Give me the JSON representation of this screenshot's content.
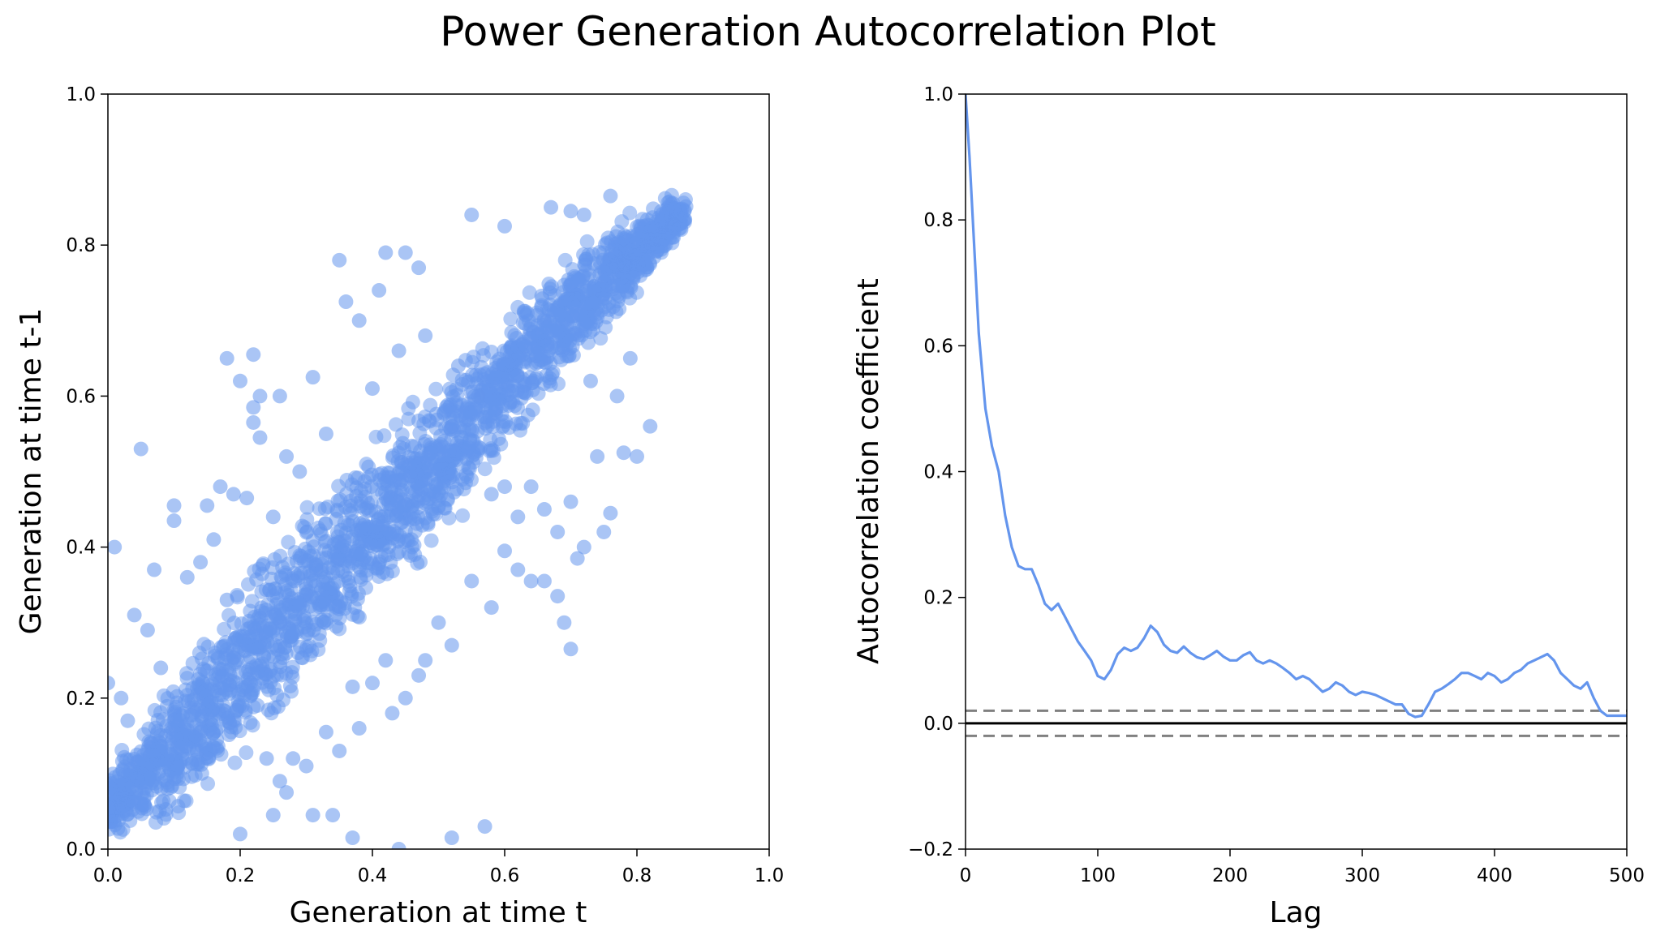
{
  "title": "Power Generation Autocorrelation Plot",
  "chart_data": [
    {
      "type": "scatter",
      "xlabel": "Generation at time t",
      "ylabel": "Generation at time t-1",
      "xlim": [
        0,
        1.0
      ],
      "ylim": [
        0,
        1.0
      ],
      "xticks": [
        0.0,
        0.2,
        0.4,
        0.6,
        0.8,
        1.0
      ],
      "yticks": [
        0.0,
        0.2,
        0.4,
        0.6,
        0.8,
        1.0
      ],
      "tick_labels_x": [
        "0.0",
        "0.2",
        "0.4",
        "0.6",
        "0.8",
        "1.0"
      ],
      "tick_labels_y": [
        "0.0",
        "0.2",
        "0.4",
        "0.6",
        "0.8",
        "1.0"
      ],
      "grid": false,
      "color": "#6495ED",
      "points": [
        [
          0.01,
          0.4
        ],
        [
          0.05,
          0.53
        ],
        [
          0.07,
          0.37
        ],
        [
          0.1,
          0.455
        ],
        [
          0.1,
          0.435
        ],
        [
          0.15,
          0.455
        ],
        [
          0.17,
          0.48
        ],
        [
          0.19,
          0.47
        ],
        [
          0.21,
          0.465
        ],
        [
          0.18,
          0.65
        ],
        [
          0.2,
          0.62
        ],
        [
          0.22,
          0.655
        ],
        [
          0.23,
          0.6
        ],
        [
          0.26,
          0.6
        ],
        [
          0.22,
          0.585
        ],
        [
          0.22,
          0.565
        ],
        [
          0.23,
          0.545
        ],
        [
          0.27,
          0.52
        ],
        [
          0.31,
          0.625
        ],
        [
          0.35,
          0.78
        ],
        [
          0.36,
          0.725
        ],
        [
          0.38,
          0.7
        ],
        [
          0.41,
          0.74
        ],
        [
          0.42,
          0.79
        ],
        [
          0.45,
          0.79
        ],
        [
          0.47,
          0.77
        ],
        [
          0.55,
          0.84
        ],
        [
          0.6,
          0.825
        ],
        [
          0.67,
          0.85
        ],
        [
          0.7,
          0.845
        ],
        [
          0.72,
          0.84
        ],
        [
          0.76,
          0.865
        ],
        [
          0.58,
          0.47
        ],
        [
          0.6,
          0.48
        ],
        [
          0.62,
          0.44
        ],
        [
          0.64,
          0.48
        ],
        [
          0.66,
          0.45
        ],
        [
          0.68,
          0.42
        ],
        [
          0.7,
          0.46
        ],
        [
          0.71,
          0.385
        ],
        [
          0.72,
          0.4
        ],
        [
          0.75,
          0.42
        ],
        [
          0.76,
          0.445
        ],
        [
          0.78,
          0.525
        ],
        [
          0.8,
          0.52
        ],
        [
          0.82,
          0.56
        ],
        [
          0.6,
          0.395
        ],
        [
          0.62,
          0.37
        ],
        [
          0.64,
          0.355
        ],
        [
          0.66,
          0.355
        ],
        [
          0.68,
          0.335
        ],
        [
          0.69,
          0.3
        ],
        [
          0.7,
          0.265
        ],
        [
          0.58,
          0.32
        ],
        [
          0.55,
          0.355
        ],
        [
          0.5,
          0.3
        ],
        [
          0.52,
          0.27
        ],
        [
          0.48,
          0.25
        ],
        [
          0.42,
          0.25
        ],
        [
          0.37,
          0.215
        ],
        [
          0.33,
          0.155
        ],
        [
          0.35,
          0.13
        ],
        [
          0.3,
          0.11
        ],
        [
          0.27,
          0.075
        ],
        [
          0.25,
          0.045
        ],
        [
          0.2,
          0.02
        ],
        [
          0.31,
          0.045
        ],
        [
          0.34,
          0.045
        ],
        [
          0.37,
          0.015
        ],
        [
          0.44,
          0.0
        ],
        [
          0.52,
          0.015
        ],
        [
          0.57,
          0.03
        ],
        [
          0.0,
          0.22
        ],
        [
          0.02,
          0.2
        ],
        [
          0.04,
          0.31
        ],
        [
          0.06,
          0.29
        ],
        [
          0.08,
          0.24
        ],
        [
          0.03,
          0.17
        ],
        [
          0.12,
          0.36
        ],
        [
          0.14,
          0.38
        ],
        [
          0.16,
          0.41
        ],
        [
          0.18,
          0.33
        ],
        [
          0.24,
          0.12
        ],
        [
          0.26,
          0.09
        ],
        [
          0.28,
          0.12
        ],
        [
          0.4,
          0.22
        ],
        [
          0.43,
          0.18
        ],
        [
          0.45,
          0.2
        ],
        [
          0.47,
          0.23
        ],
        [
          0.38,
          0.16
        ],
        [
          0.56,
          0.6
        ],
        [
          0.53,
          0.64
        ],
        [
          0.48,
          0.68
        ],
        [
          0.44,
          0.66
        ],
        [
          0.4,
          0.61
        ],
        [
          0.33,
          0.55
        ],
        [
          0.29,
          0.5
        ],
        [
          0.25,
          0.44
        ],
        [
          0.74,
          0.52
        ],
        [
          0.77,
          0.6
        ],
        [
          0.79,
          0.65
        ],
        [
          0.73,
          0.62
        ]
      ],
      "band": [
        {
          "x": 0.0,
          "lo": 0.0,
          "hi": 0.12
        },
        {
          "x": 0.05,
          "lo": 0.0,
          "hi": 0.18
        },
        {
          "x": 0.1,
          "lo": 0.02,
          "hi": 0.25
        },
        {
          "x": 0.15,
          "lo": 0.05,
          "hi": 0.31
        },
        {
          "x": 0.2,
          "lo": 0.09,
          "hi": 0.38
        },
        {
          "x": 0.25,
          "lo": 0.14,
          "hi": 0.43
        },
        {
          "x": 0.3,
          "lo": 0.19,
          "hi": 0.47
        },
        {
          "x": 0.35,
          "lo": 0.24,
          "hi": 0.52
        },
        {
          "x": 0.4,
          "lo": 0.29,
          "hi": 0.56
        },
        {
          "x": 0.45,
          "lo": 0.34,
          "hi": 0.6
        },
        {
          "x": 0.5,
          "lo": 0.39,
          "hi": 0.64
        },
        {
          "x": 0.55,
          "lo": 0.44,
          "hi": 0.68
        },
        {
          "x": 0.6,
          "lo": 0.5,
          "hi": 0.73
        },
        {
          "x": 0.65,
          "lo": 0.56,
          "hi": 0.77
        },
        {
          "x": 0.7,
          "lo": 0.62,
          "hi": 0.81
        },
        {
          "x": 0.75,
          "lo": 0.67,
          "hi": 0.84
        },
        {
          "x": 0.8,
          "lo": 0.72,
          "hi": 0.86
        },
        {
          "x": 0.85,
          "lo": 0.78,
          "hi": 0.875
        },
        {
          "x": 0.875,
          "lo": 0.82,
          "hi": 0.87
        }
      ]
    },
    {
      "type": "line",
      "xlabel": "Lag",
      "ylabel": "Autocorrelation coefficient",
      "xlim": [
        0,
        500
      ],
      "ylim": [
        -0.2,
        1.0
      ],
      "xticks": [
        0,
        100,
        200,
        300,
        400,
        500
      ],
      "yticks": [
        -0.2,
        0.0,
        0.2,
        0.4,
        0.6,
        0.8,
        1.0
      ],
      "tick_labels_x": [
        "0",
        "100",
        "200",
        "300",
        "400",
        "500"
      ],
      "tick_labels_y": [
        "−0.2",
        "0.0",
        "0.2",
        "0.4",
        "0.6",
        "0.8",
        "1.0"
      ],
      "grid": false,
      "color": "#6495ED",
      "series": [
        {
          "x": [
            0,
            3,
            6,
            10,
            15,
            20,
            25,
            30,
            35,
            40,
            45,
            50,
            55,
            60,
            65,
            70,
            75,
            80,
            85,
            90,
            95,
            100,
            105,
            110,
            115,
            120,
            125,
            130,
            135,
            140,
            145,
            150,
            155,
            160,
            165,
            170,
            175,
            180,
            185,
            190,
            195,
            200,
            205,
            210,
            215,
            220,
            225,
            230,
            235,
            240,
            245,
            250,
            255,
            260,
            265,
            270,
            275,
            280,
            285,
            290,
            295,
            300,
            305,
            310,
            315,
            320,
            325,
            330,
            335,
            340,
            345,
            350,
            355,
            360,
            365,
            370,
            375,
            380,
            385,
            390,
            395,
            400,
            405,
            410,
            415,
            420,
            425,
            430,
            435,
            440,
            445,
            450,
            455,
            460,
            465,
            470,
            475,
            480,
            485,
            490,
            495,
            500
          ],
          "y": [
            1.0,
            0.9,
            0.78,
            0.62,
            0.5,
            0.44,
            0.4,
            0.33,
            0.28,
            0.25,
            0.245,
            0.245,
            0.22,
            0.19,
            0.18,
            0.19,
            0.17,
            0.15,
            0.13,
            0.115,
            0.1,
            0.075,
            0.07,
            0.085,
            0.11,
            0.12,
            0.115,
            0.12,
            0.135,
            0.155,
            0.145,
            0.125,
            0.115,
            0.112,
            0.122,
            0.112,
            0.105,
            0.102,
            0.108,
            0.115,
            0.106,
            0.1,
            0.1,
            0.108,
            0.113,
            0.1,
            0.095,
            0.1,
            0.095,
            0.088,
            0.08,
            0.07,
            0.075,
            0.07,
            0.06,
            0.05,
            0.055,
            0.065,
            0.06,
            0.05,
            0.045,
            0.05,
            0.048,
            0.045,
            0.04,
            0.035,
            0.03,
            0.03,
            0.015,
            0.01,
            0.012,
            0.03,
            0.05,
            0.055,
            0.062,
            0.07,
            0.08,
            0.08,
            0.075,
            0.07,
            0.08,
            0.075,
            0.065,
            0.07,
            0.08,
            0.085,
            0.095,
            0.1,
            0.105,
            0.11,
            0.1,
            0.08,
            0.07,
            0.06,
            0.055,
            0.065,
            0.04,
            0.02,
            0.012,
            0.012,
            0.012,
            0.012
          ]
        }
      ],
      "hlines": [
        {
          "y": 0.0,
          "style": "solid",
          "color": "#000000"
        },
        {
          "y": 0.02,
          "style": "dashed",
          "color": "#808080"
        },
        {
          "y": -0.02,
          "style": "dashed",
          "color": "#808080"
        }
      ]
    }
  ]
}
